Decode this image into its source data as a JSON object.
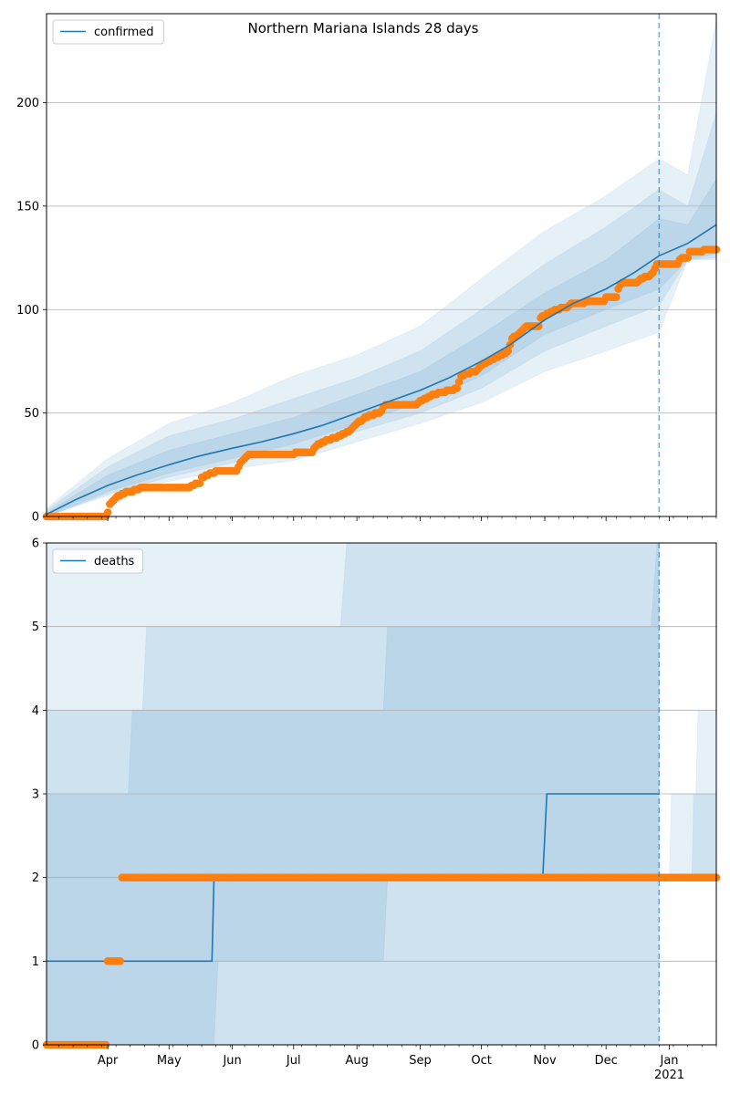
{
  "colors": {
    "model": "#1f77b4",
    "observed": "#ff7f0e",
    "band": "#1f77b4",
    "grid": "#b0b0b0"
  },
  "chart_data": [
    {
      "type": "line",
      "title": "Northern Mariana Islands 28 days",
      "legend": {
        "label": "confirmed",
        "placement": "top-left"
      },
      "xlim": [
        "2020-03-02",
        "2021-01-24"
      ],
      "forecast_start": "2020-12-27",
      "ylim": [
        0,
        243
      ],
      "yticks": [
        0,
        50,
        100,
        150,
        200
      ],
      "grid": "horizontal",
      "model": {
        "x": [
          "2020-03-02",
          "2020-03-16",
          "2020-04-01",
          "2020-04-15",
          "2020-05-01",
          "2020-05-15",
          "2020-06-01",
          "2020-06-15",
          "2020-07-01",
          "2020-07-15",
          "2020-08-01",
          "2020-08-15",
          "2020-09-01",
          "2020-09-15",
          "2020-10-01",
          "2020-10-15",
          "2020-11-01",
          "2020-11-15",
          "2020-12-01",
          "2020-12-15",
          "2020-12-27",
          "2021-01-10",
          "2021-01-24"
        ],
        "y": [
          1,
          8,
          15,
          20,
          25,
          29,
          33,
          36,
          40,
          44,
          50,
          55,
          61,
          67,
          75,
          83,
          95,
          103,
          110,
          118,
          126,
          132,
          141
        ]
      },
      "bands": [
        {
          "x": [
            "2020-03-02",
            "2020-04-01",
            "2020-05-01",
            "2020-06-01",
            "2020-07-01",
            "2020-08-01",
            "2020-09-01",
            "2020-10-01",
            "2020-11-01",
            "2020-12-01",
            "2020-12-27",
            "2021-01-10",
            "2021-01-24"
          ],
          "low": [
            0,
            10,
            17,
            23,
            27,
            36,
            45,
            55,
            70,
            80,
            89,
            124,
            124
          ],
          "high": [
            4,
            28,
            45,
            55,
            68,
            78,
            92,
            115,
            138,
            155,
            173,
            165,
            240
          ]
        },
        {
          "x": [
            "2020-03-02",
            "2020-04-01",
            "2020-05-01",
            "2020-06-01",
            "2020-07-01",
            "2020-08-01",
            "2020-09-01",
            "2020-10-01",
            "2020-11-01",
            "2020-12-01",
            "2020-12-27",
            "2021-01-10",
            "2021-01-24"
          ],
          "low": [
            0,
            11,
            19,
            26,
            31,
            41,
            50,
            62,
            80,
            92,
            102,
            124,
            125
          ],
          "high": [
            3,
            24,
            39,
            47,
            57,
            67,
            80,
            100,
            122,
            140,
            158,
            150,
            195
          ]
        },
        {
          "x": [
            "2020-03-02",
            "2020-04-01",
            "2020-05-01",
            "2020-06-01",
            "2020-07-01",
            "2020-08-01",
            "2020-09-01",
            "2020-10-01",
            "2020-11-01",
            "2020-12-01",
            "2020-12-27",
            "2021-01-10",
            "2021-01-24"
          ],
          "low": [
            0,
            12,
            21,
            28,
            35,
            45,
            55,
            68,
            88,
            100,
            110,
            124,
            127
          ],
          "high": [
            2,
            20,
            32,
            40,
            48,
            59,
            70,
            88,
            108,
            124,
            144,
            141,
            163
          ]
        }
      ],
      "observed": [
        [
          "2020-03-02",
          0
        ],
        [
          "2020-03-31",
          0
        ],
        [
          "2020-04-01",
          2
        ],
        [
          "2020-04-02",
          6
        ],
        [
          "2020-04-04",
          8
        ],
        [
          "2020-04-08",
          11
        ],
        [
          "2020-04-15",
          13
        ],
        [
          "2020-04-18",
          14
        ],
        [
          "2020-05-11",
          14
        ],
        [
          "2020-05-12",
          15
        ],
        [
          "2020-05-16",
          16
        ],
        [
          "2020-05-17",
          19
        ],
        [
          "2020-05-20",
          20
        ],
        [
          "2020-05-22",
          21
        ],
        [
          "2020-05-25",
          22
        ],
        [
          "2020-06-03",
          22
        ],
        [
          "2020-06-04",
          24
        ],
        [
          "2020-06-06",
          27
        ],
        [
          "2020-06-09",
          30
        ],
        [
          "2020-07-01",
          30
        ],
        [
          "2020-07-02",
          31
        ],
        [
          "2020-07-10",
          31
        ],
        [
          "2020-07-12",
          34
        ],
        [
          "2020-07-15",
          36
        ],
        [
          "2020-07-18",
          37
        ],
        [
          "2020-07-22",
          38
        ],
        [
          "2020-07-26",
          40
        ],
        [
          "2020-07-29",
          42
        ],
        [
          "2020-08-01",
          45
        ],
        [
          "2020-08-04",
          47
        ],
        [
          "2020-08-08",
          49
        ],
        [
          "2020-08-12",
          50
        ],
        [
          "2020-08-15",
          54
        ],
        [
          "2020-08-30",
          54
        ],
        [
          "2020-09-01",
          56
        ],
        [
          "2020-09-04",
          57
        ],
        [
          "2020-09-08",
          59
        ],
        [
          "2020-09-12",
          60
        ],
        [
          "2020-09-16",
          61
        ],
        [
          "2020-09-19",
          62
        ],
        [
          "2020-09-21",
          68
        ],
        [
          "2020-09-24",
          69
        ],
        [
          "2020-09-28",
          70
        ],
        [
          "2020-10-01",
          73
        ],
        [
          "2020-10-05",
          75
        ],
        [
          "2020-10-09",
          77
        ],
        [
          "2020-10-14",
          80
        ],
        [
          "2020-10-16",
          86
        ],
        [
          "2020-10-19",
          88
        ],
        [
          "2020-10-23",
          92
        ],
        [
          "2020-10-29",
          92
        ],
        [
          "2020-10-30",
          96
        ],
        [
          "2020-11-03",
          98
        ],
        [
          "2020-11-06",
          100
        ],
        [
          "2020-11-12",
          101
        ],
        [
          "2020-11-14",
          103
        ],
        [
          "2020-11-20",
          103
        ],
        [
          "2020-11-22",
          104
        ],
        [
          "2020-11-30",
          104
        ],
        [
          "2020-12-01",
          106
        ],
        [
          "2020-12-06",
          106
        ],
        [
          "2020-12-07",
          110
        ],
        [
          "2020-12-09",
          113
        ],
        [
          "2020-12-16",
          113
        ],
        [
          "2020-12-18",
          115
        ],
        [
          "2020-12-22",
          116
        ],
        [
          "2020-12-24",
          118
        ],
        [
          "2020-12-26",
          122
        ],
        [
          "2021-01-05",
          122
        ],
        [
          "2021-01-07",
          125
        ],
        [
          "2021-01-10",
          125
        ],
        [
          "2021-01-11",
          128
        ],
        [
          "2021-01-17",
          128
        ],
        [
          "2021-01-18",
          129
        ],
        [
          "2021-01-24",
          129
        ]
      ]
    },
    {
      "type": "line",
      "title": "",
      "legend": {
        "label": "deaths",
        "placement": "top-left"
      },
      "xlim": [
        "2020-03-02",
        "2021-01-24"
      ],
      "forecast_start": "2020-12-27",
      "ylim": [
        0,
        6
      ],
      "yticks": [
        0,
        1,
        2,
        3,
        4,
        5,
        6
      ],
      "xticks": {
        "major": [
          "Apr",
          "May",
          "Jun",
          "Jul",
          "Aug",
          "Sep",
          "Oct",
          "Nov",
          "Dec",
          "Jan"
        ],
        "year_label": "2021"
      },
      "grid": "horizontal",
      "model": {
        "x": [
          "2020-03-02",
          "2020-05-22",
          "2020-05-23",
          "2020-10-31",
          "2020-11-02",
          "2020-12-27"
        ],
        "y": [
          1,
          1,
          2,
          2,
          3,
          3
        ]
      },
      "bands": [
        {
          "x": [
            "2020-03-02",
            "2020-12-25",
            "2020-12-26",
            "2020-12-27"
          ],
          "low": [
            0,
            0,
            0,
            0
          ],
          "high": [
            6,
            6,
            6,
            6
          ]
        },
        {
          "x": [
            "2020-03-02",
            "2020-04-18",
            "2020-04-20",
            "2020-07-24",
            "2020-07-27",
            "2020-12-24",
            "2020-12-26",
            "2020-12-27"
          ],
          "low": [
            0,
            0,
            0,
            0,
            0,
            0,
            0,
            0
          ],
          "high": [
            4,
            4,
            5,
            5,
            6,
            6,
            6,
            6
          ]
        },
        {
          "x": [
            "2020-03-02",
            "2020-04-11",
            "2020-04-13",
            "2020-05-23",
            "2020-05-25",
            "2020-08-14",
            "2020-08-16",
            "2020-12-23",
            "2020-12-26",
            "2020-12-27"
          ],
          "low": [
            0,
            0,
            0,
            0,
            1,
            1,
            2,
            2,
            2,
            2
          ],
          "high": [
            3,
            3,
            4,
            4,
            4,
            4,
            5,
            5,
            6,
            6
          ]
        },
        {
          "x": [
            "2021-01-01",
            "2021-01-02",
            "2021-01-14",
            "2021-01-15",
            "2021-01-18",
            "2021-01-24"
          ],
          "low": [
            2,
            2,
            2,
            2,
            2,
            2
          ],
          "high": [
            2,
            3,
            3,
            4,
            4,
            4
          ]
        },
        {
          "x": [
            "2021-01-12",
            "2021-01-13",
            "2021-01-24"
          ],
          "low": [
            2,
            2,
            2
          ],
          "high": [
            2,
            3,
            3
          ]
        }
      ],
      "observed": [
        [
          "2020-03-02",
          0
        ],
        [
          "2020-03-31",
          0
        ],
        [
          "2020-04-01",
          1
        ],
        [
          "2020-04-07",
          1
        ],
        [
          "2020-04-08",
          2
        ],
        [
          "2021-01-24",
          2
        ]
      ]
    }
  ]
}
